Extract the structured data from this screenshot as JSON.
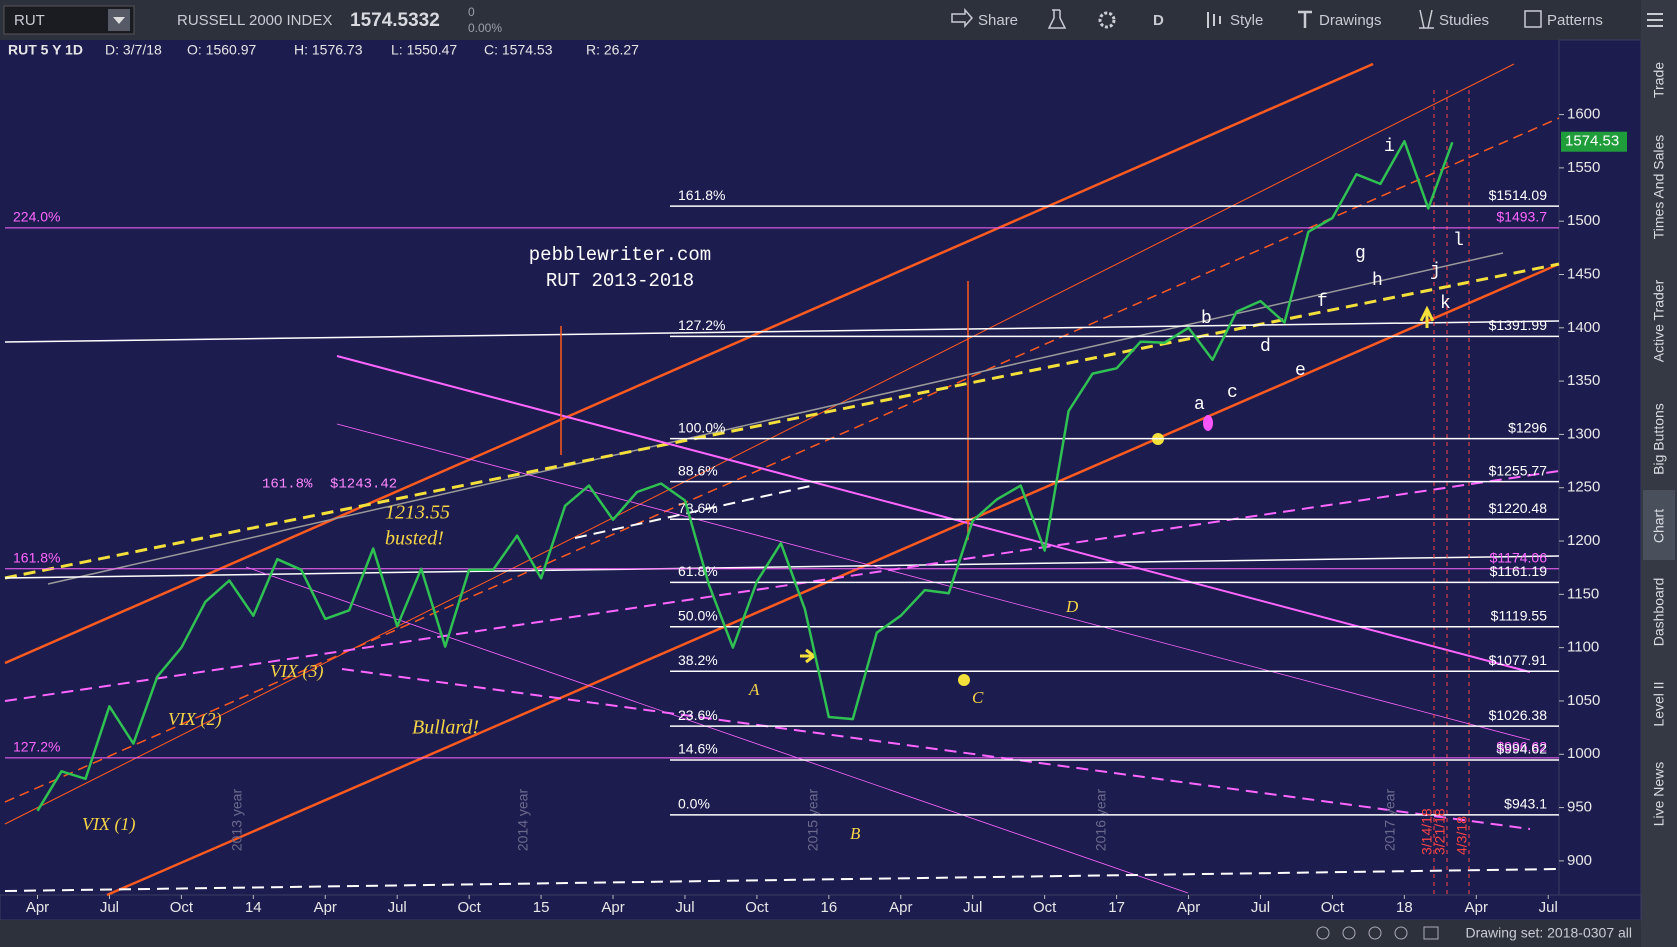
{
  "toolbar": {
    "symbol": "RUT",
    "index_name": "RUSSELL 2000 INDEX",
    "last": "1574.5332",
    "change": "0",
    "change_pct": "0.00%",
    "buttons": [
      "Share",
      "D",
      "Style",
      "Drawings",
      "Studies",
      "Patterns"
    ]
  },
  "info_bar": [
    "RUT 5 Y 1D",
    "D: 3/7/18",
    "O: 1560.97",
    "H: 1576.73",
    "L: 1550.47",
    "C: 1574.53",
    "R: 26.27"
  ],
  "side_tabs": [
    "Trade",
    "Times And Sales",
    "Active Trader",
    "Big Buttons",
    "Chart",
    "Dashboard",
    "Level II",
    "Live News"
  ],
  "footer": {
    "drawing_set": "Drawing set: 2018-0307 all"
  },
  "chart_data": {
    "type": "line",
    "title": "pebblewriter.com",
    "subtitle": "RUT 2013-2018",
    "categories": [
      "Apr",
      null,
      null,
      "Jul",
      null,
      null,
      "Oct",
      null,
      null,
      "14",
      null,
      null,
      "Apr",
      null,
      null,
      "Jul",
      null,
      null,
      "Oct",
      null,
      null,
      "15",
      null,
      null,
      "Apr",
      null,
      null,
      "Jul",
      null,
      null,
      "Oct",
      null,
      null,
      "16",
      null,
      null,
      "Apr",
      null,
      null,
      "Jul",
      null,
      null,
      "Oct",
      null,
      null,
      "17",
      null,
      null,
      "Apr",
      null,
      null,
      "Jul",
      null,
      null,
      "Oct",
      null,
      null,
      "18",
      null,
      null,
      "Apr",
      null,
      null,
      "Jul"
    ],
    "series": [
      {
        "name": "RUT",
        "color": "#2fc152",
        "values": [
          947,
          984,
          977,
          1045,
          1010,
          1073,
          1100,
          1143,
          1163,
          1130,
          1183,
          1173,
          1127,
          1135,
          1193,
          1120,
          1174,
          1101,
          1173,
          1173,
          1205,
          1165,
          1233,
          1252,
          1220,
          1246,
          1254,
          1238,
          1159,
          1100,
          1162,
          1198,
          1136,
          1035,
          1033,
          1114,
          1130,
          1154,
          1151,
          1219,
          1239,
          1252,
          1191,
          1322,
          1357,
          1362,
          1387,
          1386,
          1400,
          1370,
          1415,
          1425,
          1405,
          1490,
          1503,
          1544,
          1535,
          1575,
          1512,
          1574,
          null,
          null,
          null,
          null
        ]
      }
    ],
    "last_price": {
      "value": 1574.53,
      "label": "1574.53",
      "color": "#1f9d3a"
    },
    "ylim": [
      868,
      1669
    ],
    "yticks": [
      900,
      950,
      1000,
      1050,
      1100,
      1150,
      1200,
      1250,
      1300,
      1350,
      1400,
      1450,
      1500,
      1550,
      1600
    ],
    "grid": false,
    "fib_levels": {
      "color": "#ffffff",
      "ratios": [
        "0.0%",
        "14.6%",
        "23.6%",
        "38.2%",
        "50.0%",
        "61.8%",
        "78.6%",
        "88.6%",
        "100.0%",
        "127.2%",
        "161.8%"
      ],
      "values": [
        943.1,
        994.62,
        1026.38,
        1077.91,
        1119.55,
        1161.19,
        1220.48,
        1255.77,
        1296,
        1391.99,
        1514.09
      ],
      "value_labels": [
        "$943.1",
        "$994.62",
        "$1026.38",
        "$1077.91",
        "$1119.55",
        "$1161.19",
        "$1220.48",
        "$1255.77",
        "$1296",
        "$1391.99",
        "$1514.09"
      ]
    },
    "ext_levels": {
      "color": "#ff66ff",
      "ratios": [
        "224.0%",
        "161.8%",
        "127.2%"
      ],
      "values": [
        1493.7,
        1174.06,
        996.62
      ],
      "value_labels": [
        "$1493.7",
        "$1174.06",
        "$996.62"
      ]
    },
    "annotations": [
      {
        "text": "VIX (1)",
        "color": "#f5d547"
      },
      {
        "text": "VIX (2)",
        "color": "#f5d547"
      },
      {
        "text": "VIX (3)",
        "color": "#f5d547"
      },
      {
        "text": "Bullard!",
        "color": "#f5d547"
      },
      {
        "text": "busted!",
        "color": "#f5d547"
      },
      {
        "text": "1213.55",
        "color": "#f5d547"
      },
      {
        "text": "161.8%",
        "color": "#ff88ff"
      },
      {
        "text": "$1243.42",
        "color": "#ff88ff"
      },
      {
        "text": "A",
        "color": "#f5d547"
      },
      {
        "text": "B",
        "color": "#f5d547"
      },
      {
        "text": "C",
        "color": "#f5d547"
      },
      {
        "text": "D",
        "color": "#f5d547"
      },
      {
        "text": "a",
        "color": "#ffffff"
      },
      {
        "text": "b",
        "color": "#ffffff"
      },
      {
        "text": "c",
        "color": "#ffffff"
      },
      {
        "text": "d",
        "color": "#ffffff"
      },
      {
        "text": "e",
        "color": "#ffffff"
      },
      {
        "text": "f",
        "color": "#ffffff"
      },
      {
        "text": "g",
        "color": "#ffffff"
      },
      {
        "text": "h",
        "color": "#ffffff"
      },
      {
        "text": "i",
        "color": "#ffffff"
      },
      {
        "text": "j",
        "color": "#ffffff"
      },
      {
        "text": "k",
        "color": "#ffffff"
      },
      {
        "text": "l",
        "color": "#ffffff"
      },
      {
        "text": "3/14/18",
        "color": "#ff4444"
      },
      {
        "text": "3/21/18",
        "color": "#ff4444"
      },
      {
        "text": "4/3/18",
        "color": "#ff4444"
      }
    ],
    "year_labels": [
      "2013 year",
      "2014 year",
      "2015 year",
      "2016 year",
      "2017 year"
    ]
  }
}
